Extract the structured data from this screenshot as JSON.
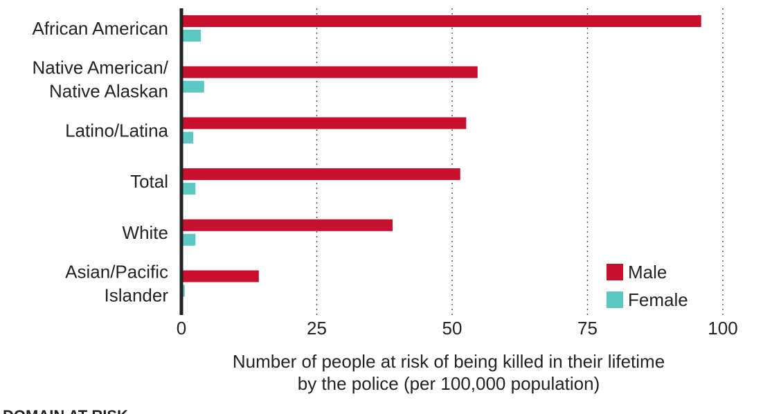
{
  "chart_data": {
    "type": "bar",
    "orientation": "horizontal",
    "categories": [
      "African American",
      "Native American/ Native Alaskan",
      "Latino/Latina",
      "Total",
      "White",
      "Asian/Pacific Islander"
    ],
    "category_lines": [
      [
        "African American"
      ],
      [
        "Native American/",
        "Native Alaskan"
      ],
      [
        "Latino/Latina"
      ],
      [
        "Total"
      ],
      [
        "White"
      ],
      [
        "Asian/Pacific",
        "Islander"
      ]
    ],
    "series": [
      {
        "name": "Male",
        "color": "#C8102E",
        "values": [
          96,
          54.7,
          52.6,
          51.5,
          39,
          14.3
        ]
      },
      {
        "name": "Female",
        "color": "#5CC8C4",
        "values": [
          3.6,
          4.2,
          2.2,
          2.6,
          2.6,
          0.6
        ]
      }
    ],
    "xlim": [
      0,
      100
    ],
    "xticks": [
      0,
      25,
      50,
      75,
      100
    ],
    "xlabel_lines": [
      "Number of people at risk of being killed in their lifetime",
      "by the police (per 100,000 population)"
    ],
    "grid": "vertical dotted",
    "legend_position": "bottom-right",
    "footer_text": "DOMAIN AT RISK"
  }
}
